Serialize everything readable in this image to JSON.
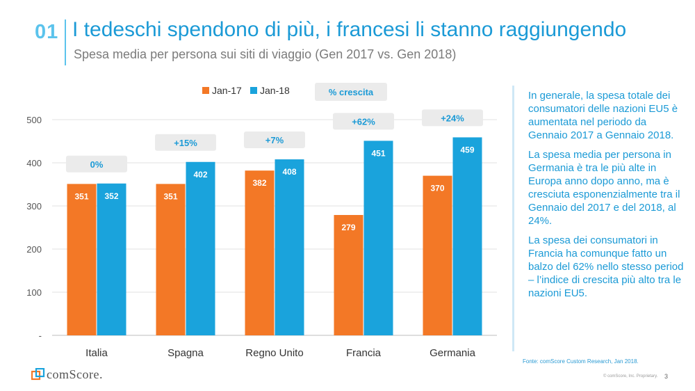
{
  "header": {
    "slide_number": "01",
    "title": "I tedeschi spendono di più, i francesi li stanno raggiungendo",
    "subtitle": "Spesa media per persona sui siti di viaggio (Gen 2017 vs. Gen 2018)"
  },
  "colors": {
    "jan17": "#f37826",
    "jan18": "#1aa3dc",
    "accent": "#1b9ad6",
    "growth_box": "#ebebeb",
    "growth_text": "#1b9ad6"
  },
  "chart_data": {
    "type": "bar",
    "title": "Spesa media per persona sui siti di viaggio (Gen 2017 vs. Gen 2018)",
    "categories": [
      "Italia",
      "Spagna",
      "Regno Unito",
      "Francia",
      "Germania"
    ],
    "series": [
      {
        "name": "Jan-17",
        "values": [
          351,
          351,
          382,
          279,
          370
        ]
      },
      {
        "name": "Jan-18",
        "values": [
          352,
          402,
          408,
          451,
          459
        ]
      }
    ],
    "growth_legend_label": "% crescita",
    "growth": [
      "0%",
      "+15%",
      "+7%",
      "+62%",
      "+24%"
    ],
    "y_ticks": [
      0,
      100,
      200,
      300,
      400,
      500
    ],
    "y_tick_labels": [
      "-",
      "100",
      "200",
      "300",
      "400",
      "500"
    ],
    "ylim": [
      0,
      500
    ],
    "xlabel": "",
    "ylabel": "",
    "grid": true,
    "legend_position": "top-center"
  },
  "side_text": [
    "In generale, la spesa totale dei consumatori delle nazioni EU5 è aumentata nel periodo da Gennaio 2017 a Gennaio 2018.",
    "La spesa media per persona in Germania è tra le più alte in Europa anno dopo anno, ma è cresciuta esponenzialmente tra il Gennaio del 2017 e del 2018, al 24%.",
    "La spesa dei consumatori in Francia ha comunque fatto un balzo del 62% nello stesso period – l’indice di crescita più alto tra le nazioni EU5."
  ],
  "footer": {
    "source": "Fonte: comScore Custom Research, Jan 2018.",
    "copyright": "© comScore, Inc. Proprietary.",
    "page_number": "3",
    "logo_text": "comScore."
  }
}
